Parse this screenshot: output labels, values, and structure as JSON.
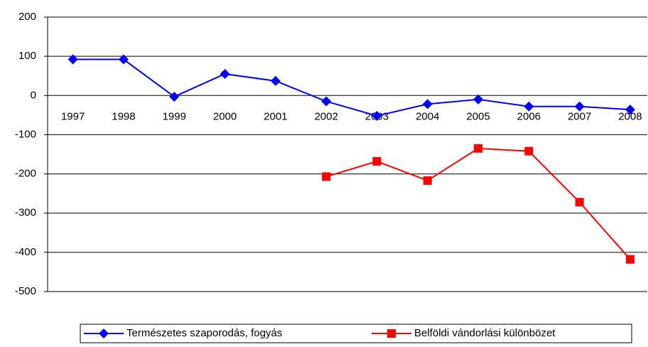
{
  "chart_data": {
    "type": "line",
    "categories": [
      "1997",
      "1998",
      "1999",
      "2000",
      "2001",
      "2002",
      "2003",
      "2004",
      "2005",
      "2006",
      "2007",
      "2008"
    ],
    "series": [
      {
        "name": "Természetes szaporodás, fogyás",
        "color": "#0000ff",
        "marker": "diamond",
        "values": [
          92,
          92,
          -3,
          55,
          37,
          -15,
          -52,
          -22,
          -10,
          -28,
          -28,
          -36
        ]
      },
      {
        "name": "Belföldi vándorlási különbözet",
        "color": "#ff0000",
        "marker": "square",
        "values": [
          null,
          null,
          null,
          null,
          null,
          -207,
          -168,
          -217,
          -135,
          -142,
          -272,
          -418
        ]
      }
    ],
    "ylim": [
      -500,
      200
    ],
    "yticks": [
      -500,
      -400,
      -300,
      -200,
      -100,
      0,
      100,
      200
    ],
    "grid": true,
    "legend": "bottom"
  }
}
